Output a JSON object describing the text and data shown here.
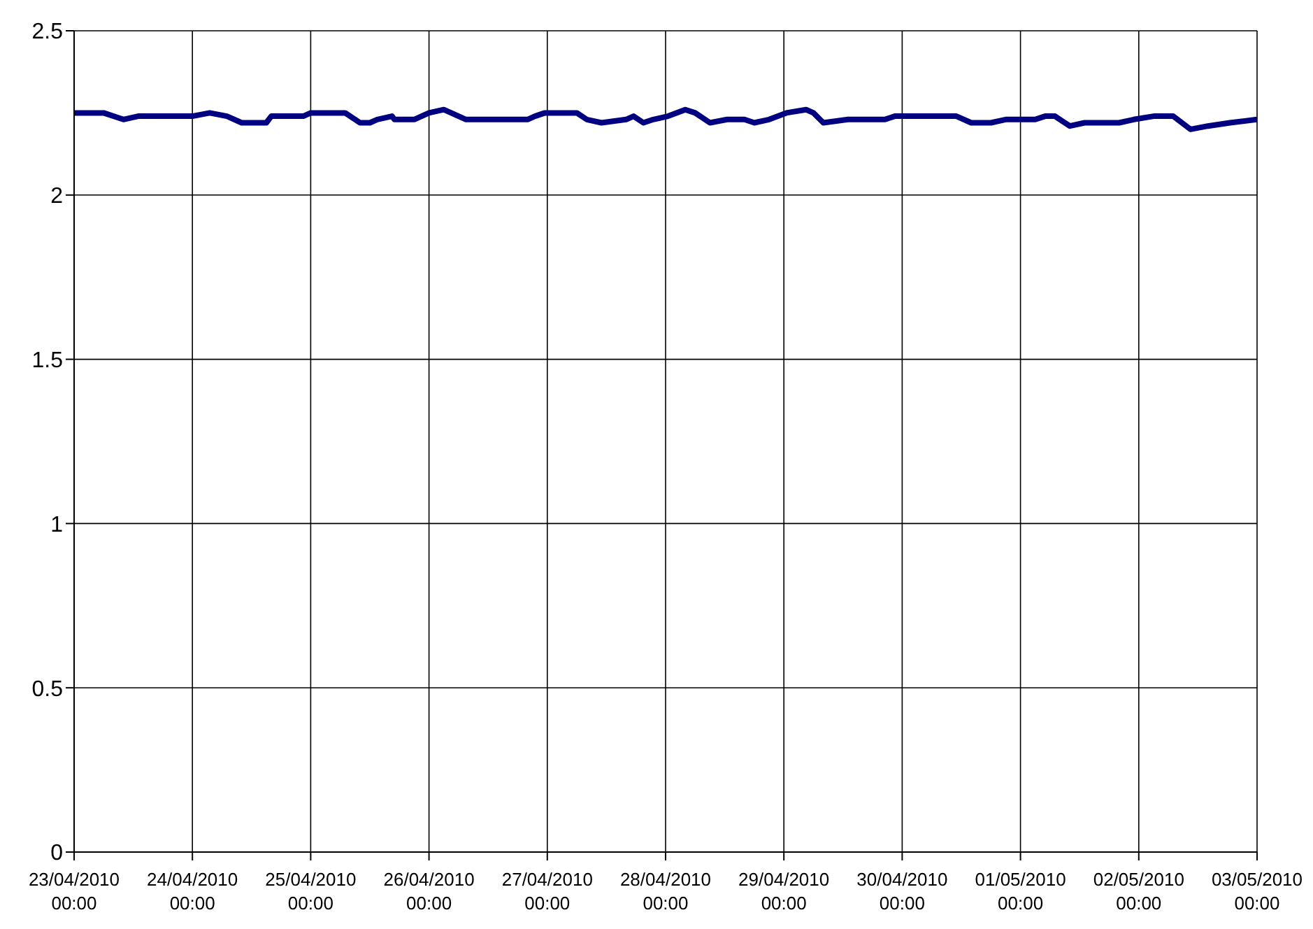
{
  "chart_data": {
    "type": "line",
    "xlim": [
      "2010-04-23T00:00",
      "2010-05-03T00:00"
    ],
    "ylim": [
      0,
      2.5
    ],
    "yticks": [
      0,
      0.5,
      1,
      1.5,
      2,
      2.5
    ],
    "xticks": [
      {
        "value": "2010-04-23T00:00",
        "label": "23/04/2010 00:00"
      },
      {
        "value": "2010-04-24T00:00",
        "label": "24/04/2010 00:00"
      },
      {
        "value": "2010-04-25T00:00",
        "label": "25/04/2010 00:00"
      },
      {
        "value": "2010-04-26T00:00",
        "label": "26/04/2010 00:00"
      },
      {
        "value": "2010-04-27T00:00",
        "label": "27/04/2010 00:00"
      },
      {
        "value": "2010-04-28T00:00",
        "label": "28/04/2010 00:00"
      },
      {
        "value": "2010-04-29T00:00",
        "label": "29/04/2010 00:00"
      },
      {
        "value": "2010-04-30T00:00",
        "label": "30/04/2010 00:00"
      },
      {
        "value": "2010-05-01T00:00",
        "label": "01/05/2010 00:00"
      },
      {
        "value": "2010-05-02T00:00",
        "label": "02/05/2010 00:00"
      },
      {
        "value": "2010-05-03T00:00",
        "label": "03/05/2010 00:00"
      }
    ],
    "grid": true,
    "legend": false,
    "marker": "none",
    "line_style": "solid",
    "x": [
      "2010-04-23T00:00",
      "2010-04-23T06:00",
      "2010-04-23T10:00",
      "2010-04-23T13:00",
      "2010-04-23T21:00",
      "2010-04-24T00:00",
      "2010-04-24T03:30",
      "2010-04-24T07:00",
      "2010-04-24T10:00",
      "2010-04-24T15:00",
      "2010-04-24T16:00",
      "2010-04-24T22:30",
      "2010-04-25T00:00",
      "2010-04-25T05:00",
      "2010-04-25T07:00",
      "2010-04-25T10:00",
      "2010-04-25T12:00",
      "2010-04-25T13:30",
      "2010-04-25T16:30",
      "2010-04-25T17:00",
      "2010-04-25T21:00",
      "2010-04-26T00:00",
      "2010-04-26T03:00",
      "2010-04-26T04:30",
      "2010-04-26T07:30",
      "2010-04-26T20:00",
      "2010-04-26T21:30",
      "2010-04-26T23:30",
      "2010-04-27T06:00",
      "2010-04-27T08:00",
      "2010-04-27T11:00",
      "2010-04-27T16:00",
      "2010-04-27T17:30",
      "2010-04-27T19:30",
      "2010-04-27T21:30",
      "2010-04-28T00:30",
      "2010-04-28T04:00",
      "2010-04-28T06:00",
      "2010-04-28T09:00",
      "2010-04-28T12:30",
      "2010-04-28T16:00",
      "2010-04-28T18:00",
      "2010-04-28T21:00",
      "2010-04-29T00:30",
      "2010-04-29T04:30",
      "2010-04-29T06:00",
      "2010-04-29T08:00",
      "2010-04-29T13:00",
      "2010-04-29T17:00",
      "2010-04-29T20:30",
      "2010-04-29T22:30",
      "2010-04-30T00:00",
      "2010-04-30T11:00",
      "2010-04-30T14:00",
      "2010-04-30T18:00",
      "2010-04-30T21:00",
      "2010-05-01T03:00",
      "2010-05-01T05:00",
      "2010-05-01T07:00",
      "2010-05-01T10:00",
      "2010-05-01T13:00",
      "2010-05-01T20:00",
      "2010-05-01T23:00",
      "2010-05-02T03:00",
      "2010-05-02T07:00",
      "2010-05-02T10:30",
      "2010-05-02T14:00",
      "2010-05-02T18:30",
      "2010-05-03T00:00"
    ],
    "series": [
      {
        "color": "#000080",
        "values": [
          2.25,
          2.25,
          2.23,
          2.24,
          2.24,
          2.24,
          2.25,
          2.24,
          2.22,
          2.22,
          2.24,
          2.24,
          2.25,
          2.25,
          2.25,
          2.22,
          2.22,
          2.23,
          2.24,
          2.23,
          2.23,
          2.25,
          2.26,
          2.25,
          2.23,
          2.23,
          2.24,
          2.25,
          2.25,
          2.23,
          2.22,
          2.23,
          2.24,
          2.22,
          2.23,
          2.24,
          2.26,
          2.25,
          2.22,
          2.23,
          2.23,
          2.22,
          2.23,
          2.25,
          2.26,
          2.25,
          2.22,
          2.23,
          2.23,
          2.23,
          2.24,
          2.24,
          2.24,
          2.22,
          2.22,
          2.23,
          2.23,
          2.24,
          2.24,
          2.21,
          2.22,
          2.22,
          2.23,
          2.24,
          2.24,
          2.2,
          2.21,
          2.22,
          2.23
        ]
      }
    ]
  }
}
